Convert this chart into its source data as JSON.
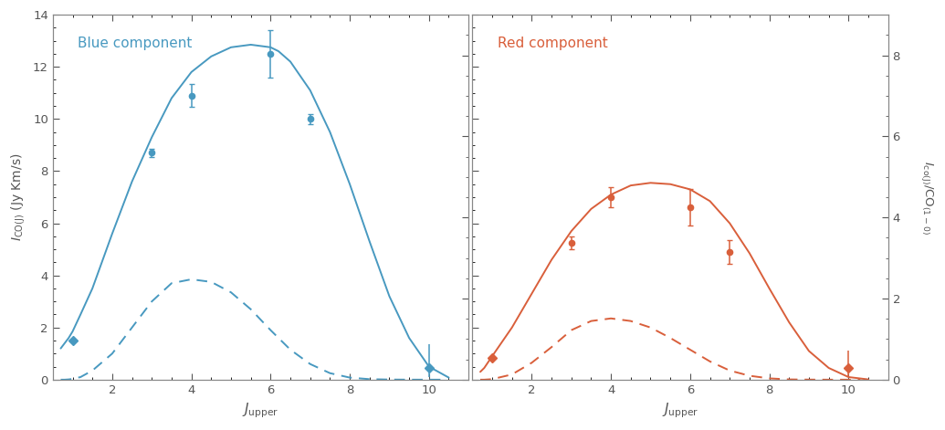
{
  "blue": {
    "label": "Blue component",
    "color": "#4899c0",
    "data_x": [
      1,
      3,
      4,
      6,
      7,
      10
    ],
    "data_y": [
      1.5,
      8.7,
      10.9,
      12.5,
      10.0,
      0.45
    ],
    "err_lo": [
      0.0,
      0.15,
      0.45,
      0.9,
      0.2,
      0.35
    ],
    "err_hi": [
      0.0,
      0.15,
      0.45,
      0.9,
      0.2,
      0.9
    ],
    "diamond_idx": [
      0,
      5
    ],
    "solid_x": [
      0.7,
      0.8,
      0.9,
      1.0,
      1.2,
      1.5,
      2.0,
      2.5,
      3.0,
      3.5,
      4.0,
      4.5,
      5.0,
      5.5,
      6.0,
      6.2,
      6.5,
      7.0,
      7.5,
      8.0,
      8.5,
      9.0,
      9.5,
      10.0,
      10.5
    ],
    "solid_y": [
      1.2,
      1.4,
      1.6,
      1.85,
      2.5,
      3.5,
      5.6,
      7.6,
      9.3,
      10.8,
      11.8,
      12.4,
      12.75,
      12.85,
      12.75,
      12.6,
      12.2,
      11.1,
      9.5,
      7.5,
      5.3,
      3.2,
      1.6,
      0.5,
      0.08
    ],
    "dashed_x": [
      0.7,
      0.8,
      0.9,
      1.0,
      1.2,
      1.5,
      2.0,
      2.5,
      3.0,
      3.5,
      4.0,
      4.5,
      5.0,
      5.5,
      6.0,
      6.5,
      7.0,
      7.5,
      8.0,
      8.5,
      9.0,
      9.5,
      10.0,
      10.3
    ],
    "dashed_y": [
      0.0,
      0.0,
      0.01,
      0.03,
      0.1,
      0.35,
      1.0,
      2.0,
      3.0,
      3.7,
      3.85,
      3.75,
      3.35,
      2.7,
      1.9,
      1.15,
      0.6,
      0.25,
      0.08,
      0.02,
      0.005,
      0.001,
      0.0,
      0.0
    ]
  },
  "red": {
    "label": "Red component",
    "color": "#d95f3b",
    "data_x": [
      1,
      3,
      4,
      6,
      7,
      10
    ],
    "data_y": [
      0.85,
      5.25,
      7.0,
      6.6,
      4.9,
      0.45
    ],
    "err_lo": [
      0.0,
      0.25,
      0.4,
      0.7,
      0.45,
      0.35
    ],
    "err_hi": [
      0.0,
      0.25,
      0.4,
      0.7,
      0.45,
      0.65
    ],
    "diamond_idx": [
      0,
      5
    ],
    "solid_x": [
      0.7,
      0.8,
      1.0,
      1.5,
      2.0,
      2.5,
      3.0,
      3.5,
      4.0,
      4.5,
      5.0,
      5.5,
      6.0,
      6.5,
      7.0,
      7.5,
      8.0,
      8.5,
      9.0,
      9.5,
      10.0,
      10.5
    ],
    "solid_y": [
      0.3,
      0.45,
      0.9,
      2.0,
      3.3,
      4.6,
      5.7,
      6.55,
      7.1,
      7.45,
      7.55,
      7.5,
      7.3,
      6.85,
      6.0,
      4.85,
      3.5,
      2.2,
      1.1,
      0.45,
      0.1,
      0.01
    ],
    "dashed_x": [
      0.7,
      0.8,
      1.0,
      1.5,
      2.0,
      2.5,
      3.0,
      3.5,
      4.0,
      4.5,
      5.0,
      5.5,
      6.0,
      6.5,
      7.0,
      7.5,
      8.0,
      8.5,
      9.0,
      9.5,
      10.0,
      10.3
    ],
    "dashed_y": [
      0.0,
      0.0,
      0.02,
      0.2,
      0.65,
      1.25,
      1.9,
      2.25,
      2.35,
      2.25,
      2.0,
      1.6,
      1.15,
      0.7,
      0.35,
      0.15,
      0.05,
      0.01,
      0.003,
      0.0,
      0.0,
      0.0
    ]
  },
  "ylim": [
    0,
    14
  ],
  "right_ylim": [
    0,
    9.0
  ],
  "xlim": [
    0.5,
    11.0
  ],
  "yticks_left": [
    0,
    2,
    4,
    6,
    8,
    10,
    12,
    14
  ],
  "yticks_right": [
    0,
    2,
    4,
    6,
    8
  ],
  "xticks": [
    2,
    4,
    6,
    8,
    10
  ],
  "xlabel": "$J_{\\rm upper}$",
  "ylabel_left": "$I_{\\rm CO(J)}$ (Jy Km/s)",
  "ylabel_right": "$I_{\\rm co(J)}/\\rm CO_{(1-0)}$",
  "background_color": "#ffffff",
  "tick_color": "#555555",
  "spine_color": "#888888"
}
